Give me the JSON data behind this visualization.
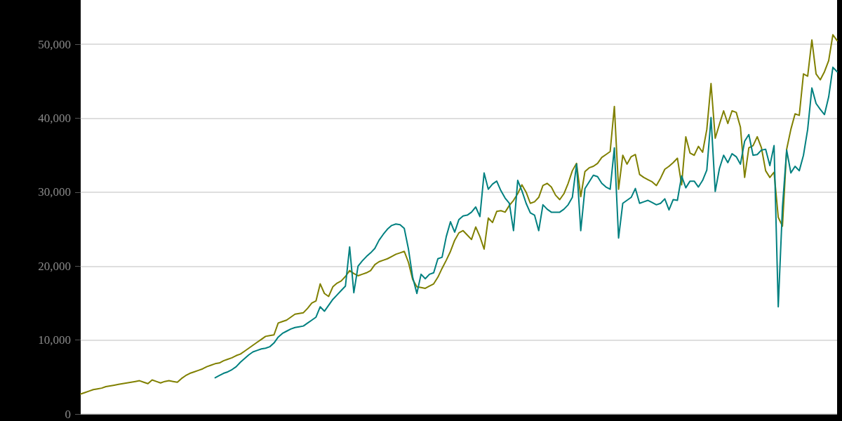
{
  "chart_data": {
    "type": "line",
    "categories": [
      null,
      null,
      null,
      null,
      null,
      null,
      null,
      null,
      null,
      null,
      null,
      null,
      null,
      null,
      null,
      null,
      null,
      null,
      null,
      null,
      null,
      null,
      null,
      null,
      null,
      null,
      null,
      null,
      null,
      null,
      null,
      null,
      null,
      null,
      null,
      null,
      null,
      null,
      null,
      null,
      null,
      null,
      null,
      null,
      null,
      null,
      null,
      null,
      null,
      null,
      null,
      null,
      null,
      null,
      null,
      null,
      null,
      null,
      null,
      null,
      null,
      null,
      null,
      null,
      null,
      null,
      null,
      null,
      null,
      null,
      null,
      null,
      null,
      null,
      null,
      null,
      null,
      null,
      null,
      null,
      null,
      null,
      null,
      null,
      null,
      null,
      null,
      null,
      null,
      null,
      null,
      null,
      null,
      null,
      null,
      null,
      null,
      null,
      null,
      null,
      null,
      null,
      null,
      null,
      null,
      null,
      null,
      null,
      null,
      null,
      null,
      null,
      null,
      null,
      null,
      null,
      null,
      null,
      null,
      null,
      null,
      null,
      null,
      null,
      null,
      null,
      null,
      null,
      null,
      null,
      null,
      null,
      null,
      null,
      null,
      null,
      null,
      null,
      null,
      null,
      null,
      null,
      null,
      null,
      null,
      null,
      null,
      null,
      null,
      null,
      null,
      null,
      null,
      null,
      null,
      null,
      null,
      null,
      null,
      null,
      null,
      null,
      null,
      null,
      null,
      null,
      null,
      null,
      null,
      null,
      null,
      null,
      null,
      null,
      null,
      null,
      null,
      null,
      null,
      null,
      null
    ],
    "series": [
      {
        "color": "#808000",
        "values": [
          2700,
          2900,
          3100,
          3300,
          3400,
          3500,
          3700,
          3800,
          3900,
          4000,
          4100,
          4200,
          4300,
          4400,
          4500,
          4300,
          4100,
          4600,
          4400,
          4200,
          4400,
          4500,
          4400,
          4300,
          4800,
          5200,
          5500,
          5700,
          5900,
          6100,
          6400,
          6600,
          6800,
          6900,
          7200,
          7400,
          7600,
          7900,
          8100,
          8500,
          8900,
          9300,
          9700,
          10100,
          10500,
          10600,
          10700,
          12300,
          12500,
          12700,
          13100,
          13500,
          13600,
          13700,
          14300,
          15000,
          15300,
          17600,
          16300,
          15900,
          17200,
          17700,
          18000,
          18600,
          19400,
          19000,
          18700,
          18900,
          19100,
          19400,
          20200,
          20600,
          20800,
          21000,
          21300,
          21600,
          21800,
          22000,
          20500,
          18200,
          17200,
          17100,
          17000,
          17300,
          17600,
          18500,
          19700,
          20800,
          22000,
          23500,
          24500,
          24800,
          24200,
          23600,
          25300,
          24000,
          22300,
          26500,
          25900,
          27400,
          27500,
          27300,
          28200,
          28900,
          29800,
          31000,
          30000,
          28500,
          28700,
          29300,
          30900,
          31200,
          30700,
          29600,
          29000,
          29800,
          31200,
          32900,
          33900,
          29400,
          32800,
          33300,
          33500,
          33900,
          34700,
          35100,
          35500,
          41600,
          30400,
          35000,
          33800,
          34800,
          35100,
          32400,
          32000,
          31700,
          31400,
          30900,
          31900,
          33100,
          33500,
          34000,
          34600,
          31000,
          37500,
          35300,
          35000,
          36200,
          35400,
          38500,
          44700,
          37300,
          39200,
          41000,
          39300,
          41000,
          40800,
          38800,
          32000,
          36000,
          36300,
          37500,
          36000,
          32900,
          32000,
          32700,
          26600,
          25400,
          35800,
          38500,
          40600,
          40400,
          46000,
          45700,
          50600,
          46000,
          45200,
          46300,
          47800,
          51300,
          50500
        ]
      },
      {
        "color": "#008080",
        "values": [
          null,
          null,
          null,
          null,
          null,
          null,
          null,
          null,
          null,
          null,
          null,
          null,
          null,
          null,
          null,
          null,
          null,
          null,
          null,
          null,
          null,
          null,
          null,
          null,
          null,
          null,
          null,
          null,
          null,
          null,
          null,
          null,
          4900,
          5200,
          5500,
          5700,
          6000,
          6400,
          7000,
          7500,
          8000,
          8400,
          8600,
          8800,
          8900,
          9100,
          9600,
          10400,
          10900,
          11200,
          11500,
          11700,
          11800,
          11900,
          12300,
          12700,
          13100,
          14500,
          13900,
          14700,
          15500,
          16100,
          16700,
          17300,
          22600,
          16400,
          20000,
          20700,
          21300,
          21800,
          22400,
          23500,
          24300,
          25000,
          25500,
          25700,
          25600,
          25100,
          22300,
          18500,
          16300,
          18900,
          18300,
          18900,
          19100,
          21000,
          21200,
          24000,
          26000,
          24600,
          26300,
          26800,
          26900,
          27300,
          28000,
          26700,
          32600,
          30400,
          31100,
          31500,
          30200,
          29200,
          28500,
          24800,
          31600,
          30200,
          28500,
          27200,
          26900,
          24800,
          28300,
          27700,
          27300,
          27300,
          27300,
          27700,
          28300,
          29300,
          33800,
          24800,
          30500,
          31400,
          32300,
          32100,
          31200,
          30700,
          30400,
          36000,
          23800,
          28500,
          28900,
          29300,
          30500,
          28500,
          28700,
          28900,
          28600,
          28300,
          28500,
          29100,
          27600,
          29000,
          28900,
          32200,
          30600,
          31500,
          31500,
          30700,
          31600,
          33000,
          40100,
          30100,
          33200,
          35000,
          34000,
          35200,
          34800,
          33800,
          36900,
          37800,
          35000,
          35100,
          35700,
          35800,
          33600,
          36300,
          14500,
          28000,
          35700,
          32600,
          33500,
          32900,
          35000,
          38500,
          44100,
          42000,
          41200,
          40500,
          42900,
          46900,
          46300
        ]
      }
    ],
    "ylim": [
      0,
      56000
    ],
    "yticks": [
      0,
      {
        "value": 10000,
        "label": "10,000"
      },
      {
        "value": 20000,
        "label": "20,000"
      },
      {
        "value": 30000,
        "label": "30,000"
      },
      {
        "value": 40000,
        "label": "40,000"
      },
      {
        "value": 50000,
        "label": "50,000"
      }
    ],
    "grid": "y",
    "tick_labels": "y"
  }
}
